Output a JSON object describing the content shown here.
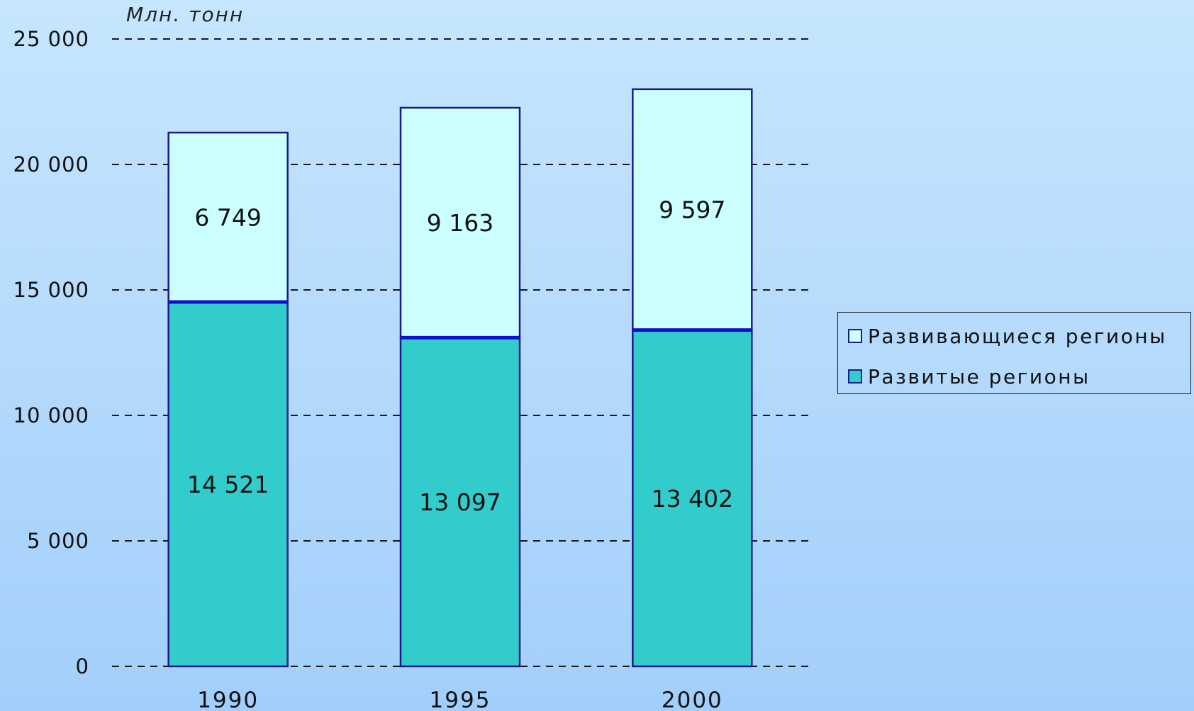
{
  "chart_data": {
    "type": "bar",
    "stacked": true,
    "y_unit_label": "Млн. тонн",
    "ylim": [
      0,
      25000
    ],
    "yticks": [
      0,
      5000,
      10000,
      15000,
      20000,
      25000
    ],
    "ytick_labels": [
      "0",
      "5 000",
      "10 000",
      "15 000",
      "20 000",
      "25 000"
    ],
    "grid": "dashed horizontal",
    "legend_position": "right",
    "categories": [
      "1990",
      "1995",
      "2000"
    ],
    "series": [
      {
        "name": "Развитые регионы",
        "values": [
          14521,
          13097,
          13402
        ],
        "labels": [
          "14 521",
          "13 097",
          "13 402"
        ],
        "color": "#33cccc"
      },
      {
        "name": "Развивающиеся регионы",
        "values": [
          6749,
          9163,
          9597
        ],
        "labels": [
          "6 749",
          "9 163",
          "9 597"
        ],
        "color": "#ccffff"
      }
    ],
    "legend_order": [
      "Развивающиеся регионы",
      "Развитые регионы"
    ],
    "bar_border_color": "#1a1a8a",
    "grid_color": "#1a1a1a",
    "text_color": "#111111"
  }
}
